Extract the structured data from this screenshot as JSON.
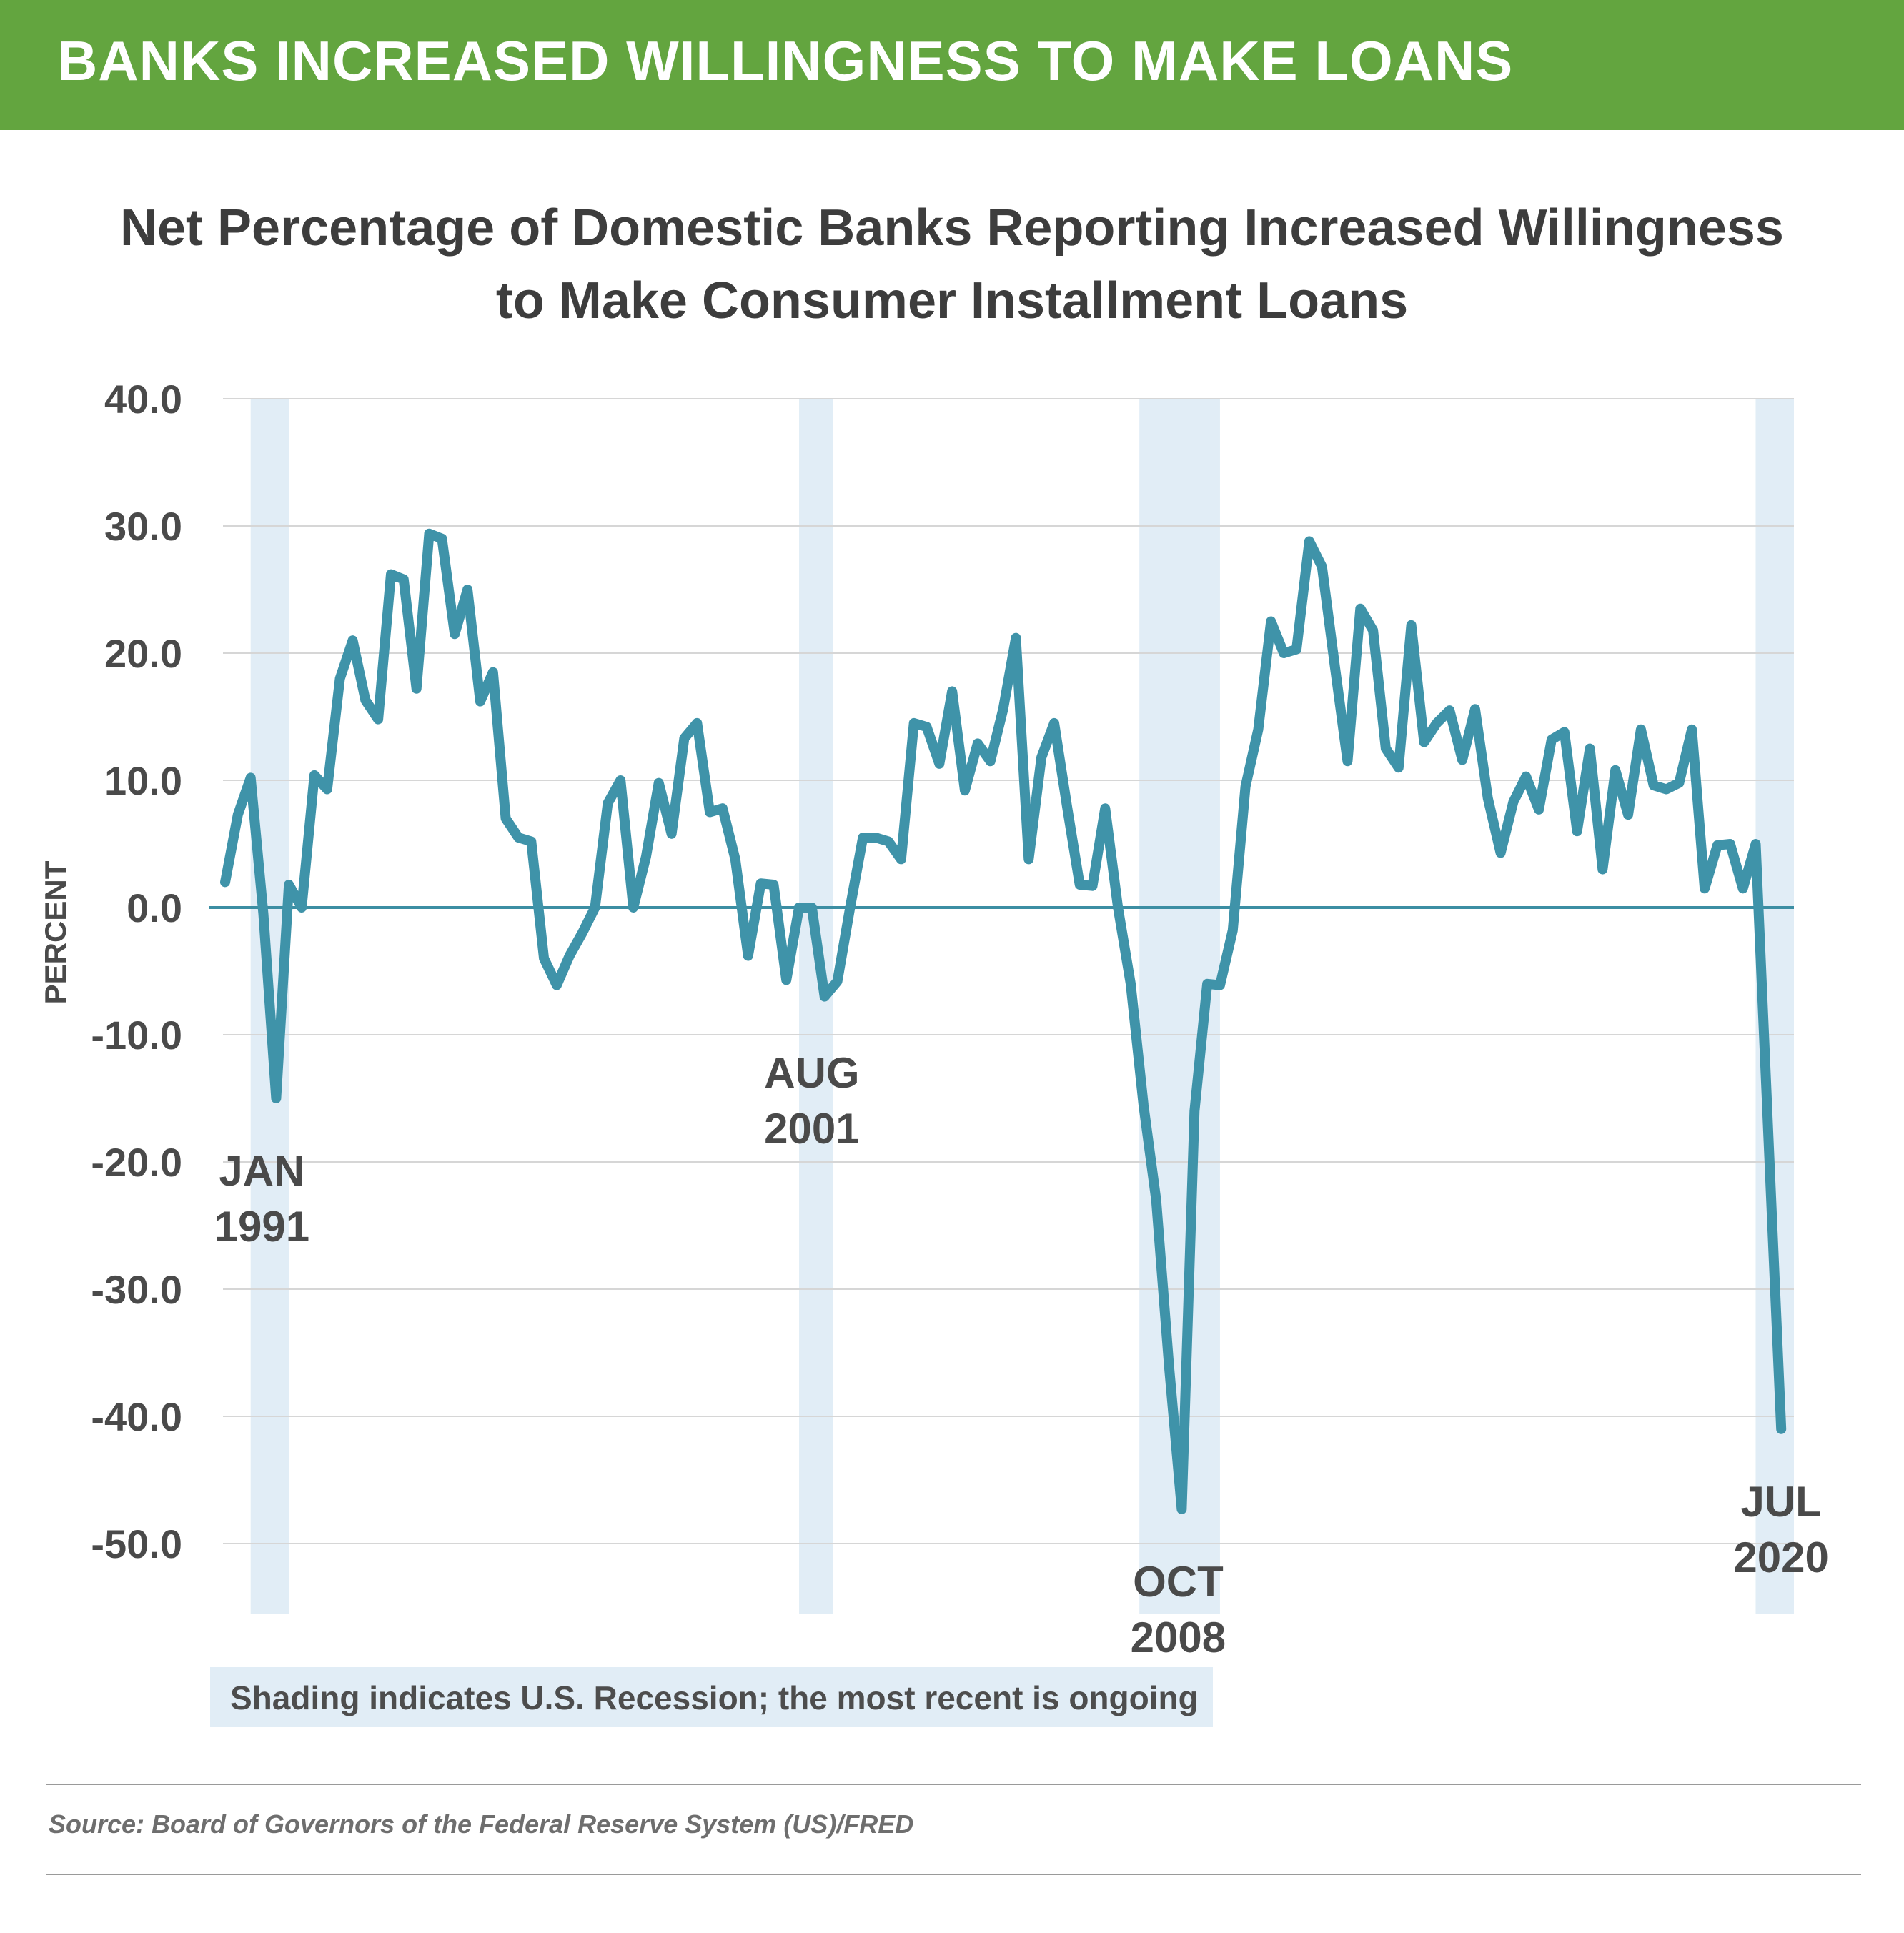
{
  "banner": {
    "title": "BANKS INCREASED WILLINGNESS TO MAKE LOANS"
  },
  "header": {
    "title_line1": "Net Percentage of Domestic Banks Reporting Increased Willingness",
    "title_line2": "to Make Consumer Installment Loans"
  },
  "legend": {
    "note": "Shading indicates U.S. Recession; the most recent is ongoing"
  },
  "source": {
    "text": "Source: Board of Governors of the Federal Reserve System (US)/FRED"
  },
  "colors": {
    "banner": "#63a53f",
    "line": "#3f93a9",
    "zero_line": "#3c8ea3",
    "recession_shading": "#e1edf6",
    "grid": "#d6d6d6",
    "text": "#4a4a4a"
  },
  "chart_data": {
    "type": "line",
    "title": "Net Percentage of Domestic Banks Reporting Increased Willingness to Make Consumer Installment Loans",
    "xlabel": "",
    "ylabel": "PERCENT",
    "ylim": [
      -50,
      40
    ],
    "y_ticks": [
      "40.0",
      "30.0",
      "20.0",
      "10.0",
      "0.0",
      "-10.0",
      "-20.0",
      "-30.0",
      "-40.0",
      "-50.0"
    ],
    "y_tick_values": [
      40,
      30,
      20,
      10,
      0,
      -10,
      -20,
      -30,
      -40,
      -50
    ],
    "x_range": [
      1990.0,
      2020.75
    ],
    "grid": true,
    "legend": "none",
    "zero_line": true,
    "recessions": [
      {
        "start": 1990.5,
        "end": 1991.25
      },
      {
        "start": 2001.25,
        "end": 2001.92
      },
      {
        "start": 2007.92,
        "end": 2009.5
      },
      {
        "start": 2020.0,
        "end": 2020.75
      }
    ],
    "annotations": [
      {
        "line1": "JAN",
        "line2": "1991",
        "x": 1991.0,
        "y": -15.0
      },
      {
        "line1": "AUG",
        "line2": "2001",
        "x": 2001.5,
        "y": -7.0
      },
      {
        "line1": "OCT",
        "line2": "2008",
        "x": 2008.75,
        "y": -47.3
      },
      {
        "line1": "JUL",
        "line2": "2020",
        "x": 2020.5,
        "y": -41.0
      }
    ],
    "series": [
      {
        "x": [
          1990.0,
          1990.25,
          1990.5,
          1990.75,
          1991.0,
          1991.25,
          1991.5,
          1991.75,
          1992.0,
          1992.25,
          1992.5,
          1992.75,
          1993.0,
          1993.25,
          1993.5,
          1993.75,
          1994.0,
          1994.25,
          1994.5,
          1994.75,
          1995.0,
          1995.25,
          1995.5,
          1995.75,
          1996.0,
          1996.25,
          1996.5,
          1996.75,
          1997.0,
          1997.25,
          1997.5,
          1997.75,
          1998.0,
          1998.25,
          1998.5,
          1998.75,
          1999.0,
          1999.25,
          1999.5,
          1999.75,
          2000.0,
          2000.25,
          2000.5,
          2000.75,
          2001.0,
          2001.25,
          2001.5,
          2001.75,
          2002.0,
          2002.25,
          2002.5,
          2002.75,
          2003.0,
          2003.25,
          2003.5,
          2003.75,
          2004.0,
          2004.25,
          2004.5,
          2004.75,
          2005.0,
          2005.25,
          2005.5,
          2005.75,
          2006.0,
          2006.25,
          2006.5,
          2006.75,
          2007.0,
          2007.25,
          2007.5,
          2007.75,
          2008.0,
          2008.25,
          2008.5,
          2008.75,
          2009.0,
          2009.25,
          2009.5,
          2009.75,
          2010.0,
          2010.25,
          2010.5,
          2010.75,
          2011.0,
          2011.25,
          2011.5,
          2011.75,
          2012.0,
          2012.25,
          2012.5,
          2012.75,
          2013.0,
          2013.25,
          2013.5,
          2013.75,
          2014.0,
          2014.25,
          2014.5,
          2014.75,
          2015.0,
          2015.25,
          2015.5,
          2015.75,
          2016.0,
          2016.25,
          2016.5,
          2016.75,
          2017.0,
          2017.25,
          2017.5,
          2017.75,
          2018.0,
          2018.25,
          2018.5,
          2018.75,
          2019.0,
          2019.25,
          2019.5,
          2019.75,
          2020.0,
          2020.25,
          2020.5
        ],
        "values": [
          2.0,
          7.3,
          10.2,
          -0.5,
          -15.0,
          1.8,
          0.0,
          10.4,
          9.3,
          18.0,
          21.0,
          16.3,
          14.8,
          26.2,
          25.8,
          17.2,
          29.4,
          29.0,
          21.5,
          25.0,
          16.2,
          18.5,
          7.0,
          5.5,
          5.2,
          -4.0,
          -6.1,
          -3.8,
          -2.0,
          0.0,
          8.2,
          10.0,
          0.0,
          4.0,
          9.8,
          5.8,
          13.3,
          14.5,
          7.5,
          7.8,
          3.8,
          -3.8,
          1.9,
          1.8,
          -5.7,
          0.0,
          0.0,
          -7.0,
          -5.8,
          0.0,
          5.5,
          5.5,
          5.2,
          3.8,
          14.5,
          14.2,
          11.3,
          17.0,
          9.2,
          12.9,
          11.5,
          15.6,
          21.2,
          3.8,
          11.8,
          14.5,
          8.0,
          1.8,
          1.7,
          7.8,
          0.0,
          -6.0,
          -15.5,
          -23.0,
          -36.0,
          -47.3,
          -16.0,
          -6.0,
          -6.1,
          -1.8,
          9.5,
          14.0,
          22.5,
          20.0,
          20.3,
          28.8,
          26.8,
          19.0,
          11.5,
          23.5,
          21.8,
          12.5,
          11.0,
          22.2,
          13.0,
          14.5,
          15.5,
          11.6,
          15.6,
          8.6,
          4.3,
          8.3,
          10.3,
          7.7,
          13.2,
          13.8,
          6.0,
          12.5,
          3.0,
          10.8,
          7.3,
          14.0,
          9.6,
          9.3,
          9.8,
          14.0,
          1.5,
          4.9,
          5.0,
          1.5,
          5.0,
          -18.0,
          -41.0
        ]
      }
    ]
  }
}
